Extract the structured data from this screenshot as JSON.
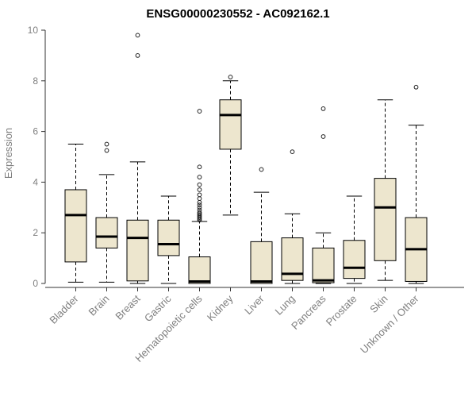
{
  "chart_data": {
    "type": "boxplot",
    "title": "ENSG00000230552 - AC092162.1",
    "ylabel": "Expression",
    "xlabel": "",
    "ylim": [
      0,
      10
    ],
    "yticks": [
      0,
      2,
      4,
      6,
      8,
      10
    ],
    "grid": false,
    "legend": "none",
    "box_fill": "#EDE6CE",
    "box_stroke": "#000000",
    "axis_text_color": "#7f7f7f",
    "categories": [
      "Bladder",
      "Brain",
      "Breast",
      "Gastric",
      "Hematopoietic cells",
      "Kidney",
      "Liver",
      "Lung",
      "Pancreas",
      "Prostate",
      "Skin",
      "Unknown / Other"
    ],
    "series": [
      {
        "category": "Bladder",
        "whisker_low": 0.05,
        "q1": 0.85,
        "median": 2.7,
        "q3": 3.7,
        "whisker_high": 5.5,
        "outliers": []
      },
      {
        "category": "Brain",
        "whisker_low": 0.05,
        "q1": 1.4,
        "median": 1.85,
        "q3": 2.6,
        "whisker_high": 4.3,
        "outliers": [
          5.25,
          5.5
        ]
      },
      {
        "category": "Breast",
        "whisker_low": 0.0,
        "q1": 0.1,
        "median": 1.8,
        "q3": 2.5,
        "whisker_high": 4.8,
        "outliers": [
          9.0,
          9.8
        ]
      },
      {
        "category": "Gastric",
        "whisker_low": 0.0,
        "q1": 1.1,
        "median": 1.55,
        "q3": 2.5,
        "whisker_high": 3.45,
        "outliers": []
      },
      {
        "category": "Hematopoietic cells",
        "whisker_low": 0.0,
        "q1": 0.0,
        "median": 0.08,
        "q3": 1.05,
        "whisker_high": 2.45,
        "outliers": [
          2.5,
          2.55,
          2.6,
          2.65,
          2.7,
          2.75,
          2.8,
          2.9,
          3.0,
          3.1,
          3.2,
          3.35,
          3.5,
          3.7,
          3.9,
          4.2,
          4.6,
          6.8
        ]
      },
      {
        "category": "Kidney",
        "whisker_low": 2.7,
        "q1": 5.3,
        "median": 6.65,
        "q3": 7.25,
        "whisker_high": 8.0,
        "outliers": [
          8.15
        ]
      },
      {
        "category": "Liver",
        "whisker_low": 0.0,
        "q1": 0.0,
        "median": 0.08,
        "q3": 1.65,
        "whisker_high": 3.6,
        "outliers": [
          4.5
        ]
      },
      {
        "category": "Lung",
        "whisker_low": 0.0,
        "q1": 0.12,
        "median": 0.38,
        "q3": 1.8,
        "whisker_high": 2.75,
        "outliers": [
          5.2
        ]
      },
      {
        "category": "Pancreas",
        "whisker_low": 0.0,
        "q1": 0.03,
        "median": 0.12,
        "q3": 1.4,
        "whisker_high": 2.0,
        "outliers": [
          5.8,
          6.9
        ]
      },
      {
        "category": "Prostate",
        "whisker_low": 0.0,
        "q1": 0.2,
        "median": 0.62,
        "q3": 1.7,
        "whisker_high": 3.45,
        "outliers": []
      },
      {
        "category": "Skin",
        "whisker_low": 0.12,
        "q1": 0.9,
        "median": 3.0,
        "q3": 4.15,
        "whisker_high": 7.25,
        "outliers": []
      },
      {
        "category": "Unknown / Other",
        "whisker_low": 0.0,
        "q1": 0.08,
        "median": 1.35,
        "q3": 2.6,
        "whisker_high": 6.25,
        "outliers": [
          7.75
        ]
      }
    ]
  }
}
